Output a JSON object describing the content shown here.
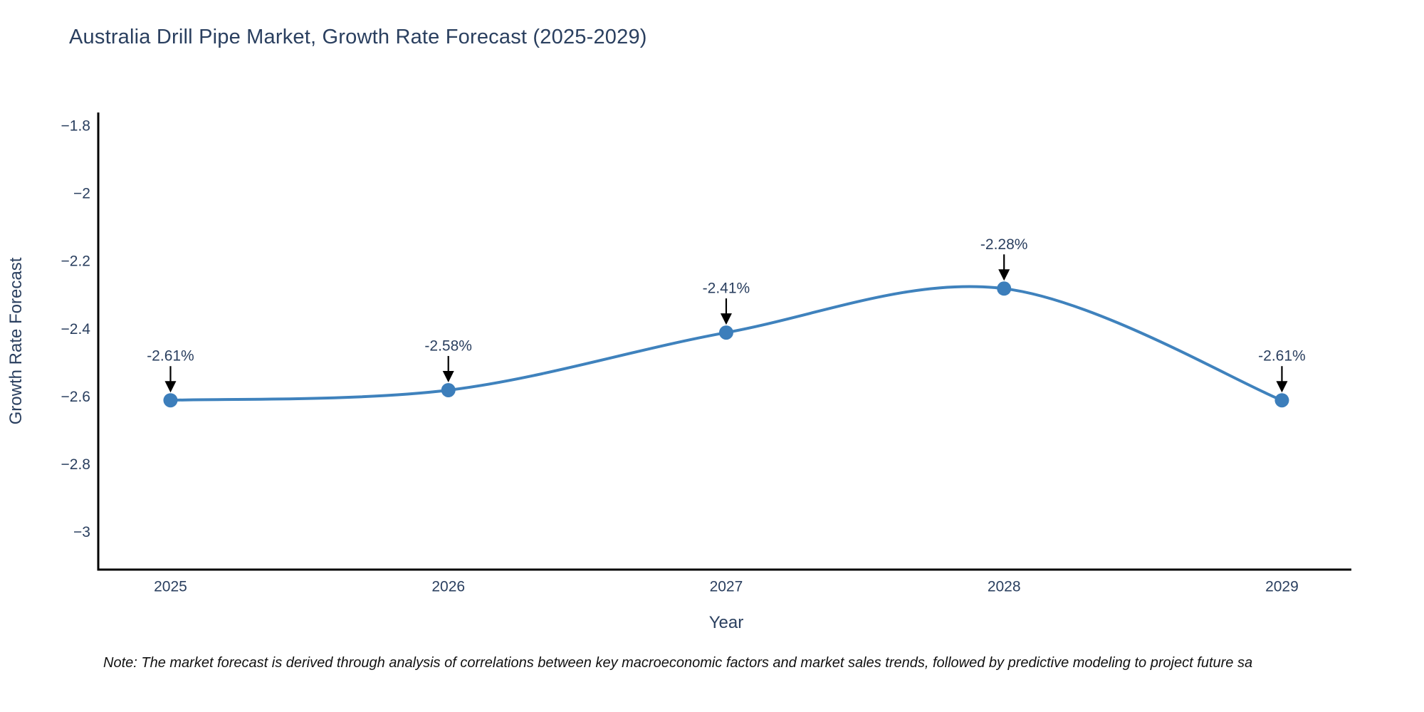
{
  "header": {
    "title": "Australia Drill Pipe Market, Growth Rate Forecast (2025-2029)"
  },
  "footer": {
    "note": "Note: The market forecast is derived through analysis of correlations between key macroeconomic factors and market sales trends, followed by predictive modeling to project future sa"
  },
  "chart_data": {
    "type": "line",
    "line_shape": "spline",
    "title": "Australia Drill Pipe Market, Growth Rate Forecast (2025-2029)",
    "xlabel": "Year",
    "ylabel": "Growth Rate Forecast",
    "x": [
      2025,
      2026,
      2027,
      2028,
      2029
    ],
    "values": [
      -2.61,
      -2.58,
      -2.41,
      -2.28,
      -2.61
    ],
    "point_labels": [
      "-2.61%",
      "-2.58%",
      "-2.41%",
      "-2.28%",
      "-2.61%"
    ],
    "x_tick_labels": [
      "2025",
      "2026",
      "2027",
      "2028",
      "2029"
    ],
    "y_ticks": [
      -1.8,
      -2,
      -2.2,
      -2.4,
      -2.6,
      -2.8,
      -3
    ],
    "y_tick_labels": [
      "−1.8",
      "−2",
      "−2.2",
      "−2.4",
      "−2.6",
      "−2.8",
      "−3"
    ],
    "xlim": [
      2024.74,
      2029.25
    ],
    "ylim": [
      -3.11,
      -1.76
    ],
    "grid": false,
    "legend": "none",
    "colors": {
      "line": "#3f82bd",
      "marker": "#3c7ebb",
      "axis": "#000000",
      "tick_text": "#2a3f5f",
      "annotation_text": "#2a3f5f",
      "arrow": "#000000"
    }
  }
}
